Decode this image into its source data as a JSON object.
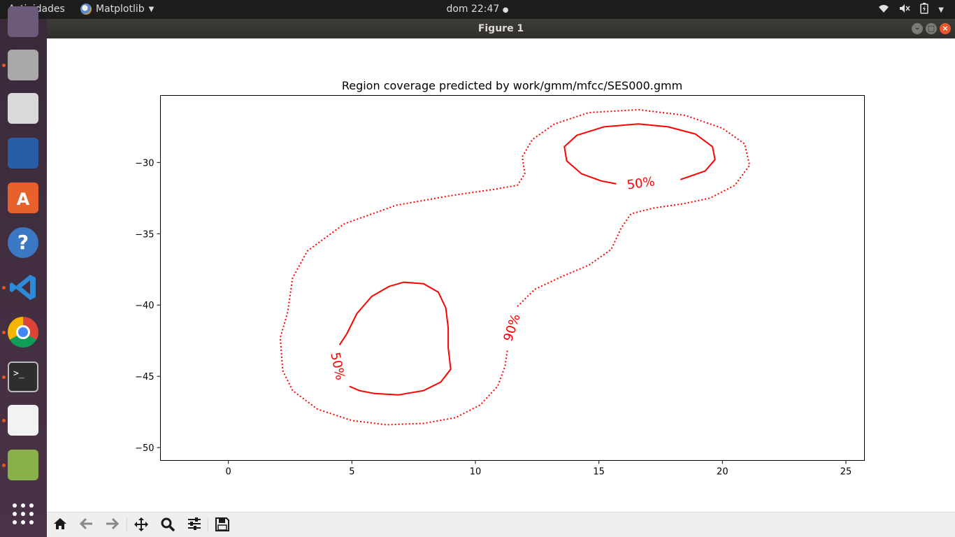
{
  "topbar": {
    "activities": "Actividades",
    "app_name": "Matplotlib",
    "clock": "dom 22:47"
  },
  "window": {
    "title": "Figure 1"
  },
  "dock": {
    "items": [
      {
        "name": "mail-icon",
        "color": "#6b5a7a",
        "running": false
      },
      {
        "name": "file-manager-icon",
        "color": "#a9a9a9",
        "running": true
      },
      {
        "name": "rhythmbox-icon",
        "color": "#d9d9d9",
        "running": false
      },
      {
        "name": "writer-icon",
        "color": "#2a5da8",
        "running": false
      },
      {
        "name": "software-center-icon",
        "color": "#e8602c",
        "running": false
      },
      {
        "name": "help-icon",
        "color": "#3a78c4",
        "running": false
      },
      {
        "name": "vscode-icon",
        "color": "#2c8ad8",
        "running": true
      },
      {
        "name": "chrome-icon",
        "color": "#db4437",
        "running": true
      },
      {
        "name": "terminal-icon",
        "color": "#2e2e2e",
        "running": true
      },
      {
        "name": "pdf-viewer-icon",
        "color": "#f2f2f2",
        "running": true
      },
      {
        "name": "image-viewer-icon",
        "color": "#8ab04a",
        "running": true
      },
      {
        "name": "show-apps-icon",
        "color": "#ffffff",
        "running": false
      }
    ]
  },
  "toolbar": {
    "buttons": [
      "home-icon",
      "back-icon",
      "forward-icon",
      "pan-icon",
      "zoom-icon",
      "configure-icon",
      "save-icon"
    ]
  },
  "chart_data": {
    "type": "contour",
    "title": "Region coverage predicted by work/gmm/mfcc/SES000.gmm",
    "xlabel": "",
    "ylabel": "",
    "xlim": [
      -2.75,
      25.75
    ],
    "ylim": [
      -50.9,
      -25.3
    ],
    "xticks": [
      0,
      5,
      10,
      15,
      20,
      25
    ],
    "yticks": [
      -30,
      -35,
      -40,
      -45,
      -50
    ],
    "color": "#ff0000",
    "series": [
      {
        "name": "90%",
        "style": "dotted",
        "points": [
          [
            11.7,
            -40.1
          ],
          [
            12.4,
            -38.9
          ],
          [
            13.5,
            -38.0
          ],
          [
            14.6,
            -37.2
          ],
          [
            15.5,
            -36.1
          ],
          [
            15.9,
            -34.6
          ],
          [
            16.3,
            -33.6
          ],
          [
            17.2,
            -33.2
          ],
          [
            18.4,
            -32.9
          ],
          [
            19.5,
            -32.5
          ],
          [
            20.5,
            -31.6
          ],
          [
            21.1,
            -30.2
          ],
          [
            20.9,
            -28.7
          ],
          [
            20.0,
            -27.6
          ],
          [
            18.5,
            -26.7
          ],
          [
            16.6,
            -26.3
          ],
          [
            14.6,
            -26.5
          ],
          [
            13.2,
            -27.3
          ],
          [
            12.3,
            -28.4
          ],
          [
            11.9,
            -29.6
          ],
          [
            12.0,
            -30.8
          ],
          [
            11.7,
            -31.6
          ],
          [
            10.7,
            -31.9
          ],
          [
            9.1,
            -32.3
          ],
          [
            6.8,
            -33.0
          ],
          [
            4.7,
            -34.3
          ],
          [
            3.2,
            -36.2
          ],
          [
            2.6,
            -38.1
          ],
          [
            2.4,
            -40.5
          ],
          [
            2.1,
            -42.3
          ],
          [
            2.2,
            -44.6
          ],
          [
            2.6,
            -46.0
          ],
          [
            3.6,
            -47.3
          ],
          [
            5.0,
            -48.1
          ],
          [
            6.4,
            -48.4
          ],
          [
            7.9,
            -48.3
          ],
          [
            9.2,
            -47.9
          ],
          [
            10.2,
            -47.0
          ],
          [
            10.9,
            -45.7
          ],
          [
            11.2,
            -44.3
          ],
          [
            11.3,
            -43.1
          ]
        ]
      },
      {
        "name": "50%",
        "style": "solid",
        "points": [
          [
            4.5,
            -42.8
          ],
          [
            4.8,
            -42.0
          ],
          [
            5.2,
            -40.6
          ],
          [
            5.8,
            -39.4
          ],
          [
            6.5,
            -38.7
          ],
          [
            7.1,
            -38.4
          ],
          [
            7.9,
            -38.5
          ],
          [
            8.5,
            -39.1
          ],
          [
            8.8,
            -40.2
          ],
          [
            8.9,
            -41.6
          ],
          [
            8.9,
            -43.0
          ],
          [
            9.0,
            -44.5
          ],
          [
            8.6,
            -45.4
          ],
          [
            7.9,
            -46.0
          ],
          [
            6.9,
            -46.3
          ],
          [
            5.9,
            -46.2
          ],
          [
            5.3,
            -46.0
          ],
          [
            4.9,
            -45.7
          ]
        ]
      },
      {
        "name": "50%",
        "style": "solid",
        "points": [
          [
            18.3,
            -31.2
          ],
          [
            19.3,
            -30.6
          ],
          [
            19.7,
            -29.8
          ],
          [
            19.6,
            -28.9
          ],
          [
            18.9,
            -28.0
          ],
          [
            17.8,
            -27.5
          ],
          [
            16.6,
            -27.3
          ],
          [
            15.2,
            -27.5
          ],
          [
            14.1,
            -28.1
          ],
          [
            13.6,
            -28.9
          ],
          [
            13.7,
            -29.9
          ],
          [
            14.3,
            -30.8
          ],
          [
            15.1,
            -31.3
          ],
          [
            15.7,
            -31.5
          ]
        ]
      }
    ],
    "labels": [
      {
        "text": "50%",
        "x": 16.7,
        "y": -31.5,
        "rotation": -8
      },
      {
        "text": "50%",
        "x": 4.4,
        "y": -44.3,
        "rotation": 78
      },
      {
        "text": "90%",
        "x": 11.5,
        "y": -41.6,
        "rotation": -72
      }
    ]
  }
}
